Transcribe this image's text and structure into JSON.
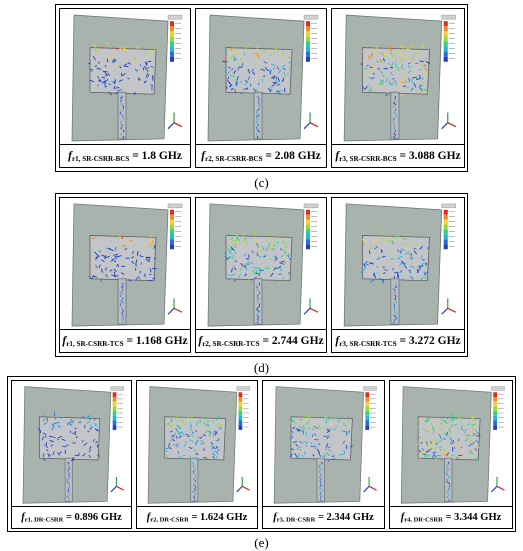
{
  "panels": [
    {
      "label": "(c)",
      "items": [
        {
          "f": "f",
          "sub": "r1, SR-CSRR-BCS",
          "value": " = 1.8 GHz"
        },
        {
          "f": "f",
          "sub": "r2, SR-CSRR-BCS",
          "value": " = 2.08 GHz"
        },
        {
          "f": "f",
          "sub": "r3, SR-CSRR-BCS",
          "value": " = 3.088 GHz"
        }
      ]
    },
    {
      "label": "(d)",
      "items": [
        {
          "f": "f",
          "sub": "r1, SR-CSRR-TCS",
          "value": " = 1.168 GHz"
        },
        {
          "f": "f",
          "sub": "r2, SR-CSRR-TCS",
          "value": " = 2.744 GHz"
        },
        {
          "f": "f",
          "sub": "r3, SR-CSRR-TCS",
          "value": " = 3.272 GHz"
        }
      ]
    },
    {
      "label": "(e)",
      "items": [
        {
          "f": "f",
          "sub": "r1, DR-CSRR",
          "value": " = 0.896 GHz"
        },
        {
          "f": "f",
          "sub": "r2, DR-CSRR",
          "value": " = 1.624 GHz"
        },
        {
          "f": "f",
          "sub": "r3, DR-CSRR",
          "value": " = 2.344 GHz"
        },
        {
          "f": "f",
          "sub": "r4, DR-CSRR",
          "value": " = 3.344 GHz"
        }
      ]
    }
  ]
}
